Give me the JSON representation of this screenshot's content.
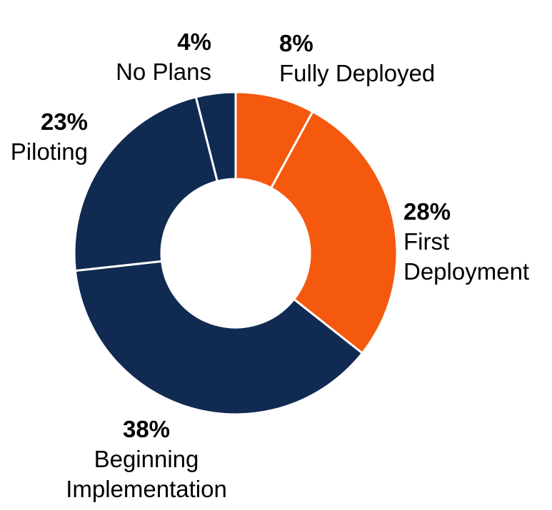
{
  "chart_data": {
    "type": "pie",
    "subtype": "donut",
    "units": "%",
    "start_angle_deg": 0,
    "direction": "clockwise",
    "donut_hole_ratio": 0.46,
    "divider_color": "#FFFFFF",
    "background_color": "#FFFFFF",
    "label_text_color": "#000000",
    "legend": "none",
    "categories": [
      "Fully Deployed",
      "First Deployment",
      "Beginning Implementation",
      "Piloting",
      "No Plans"
    ],
    "values": [
      8,
      28,
      38,
      23,
      4
    ],
    "segments": [
      {
        "id": "fully-deployed",
        "label": "Fully Deployed",
        "pct": "8%",
        "value": 8,
        "color": "#F4590E"
      },
      {
        "id": "first-deployment",
        "label": "First Deployment",
        "pct": "28%",
        "value": 28,
        "color": "#F4590E"
      },
      {
        "id": "beginning-implementation",
        "label": "Beginning Implementation",
        "pct": "38%",
        "value": 38,
        "color": "#102A52"
      },
      {
        "id": "piloting",
        "label": "Piloting",
        "pct": "23%",
        "value": 23,
        "color": "#102A52"
      },
      {
        "id": "no-plans",
        "label": "No Plans",
        "pct": "4%",
        "value": 4,
        "color": "#102A52"
      }
    ]
  }
}
